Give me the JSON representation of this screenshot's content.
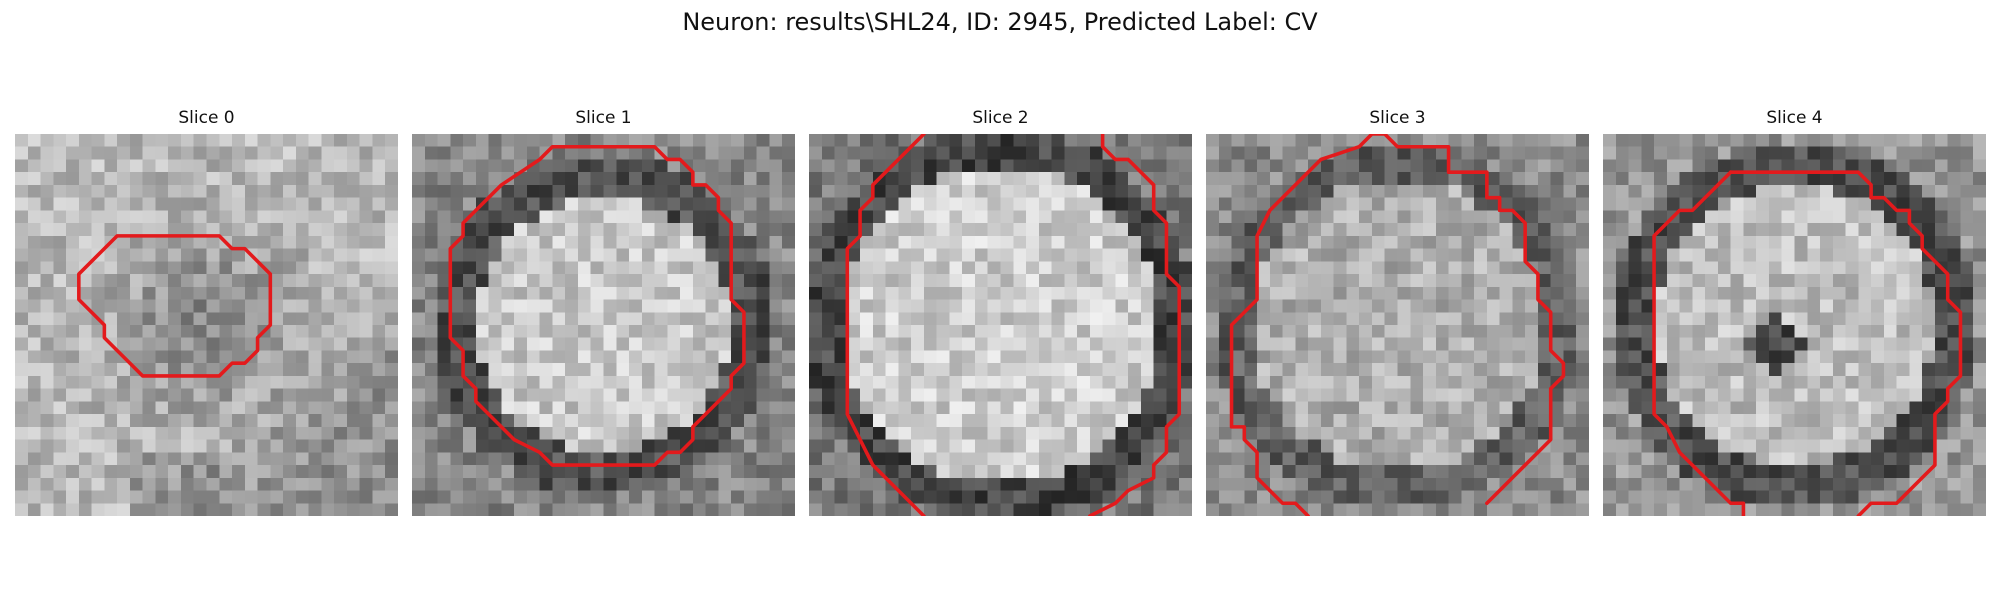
{
  "figure": {
    "title": "Neuron: results\\SHL24, ID: 2945, Predicted Label: CV",
    "contour_color": "#e31a1c",
    "colormap": "gray",
    "panels": [
      {
        "title": "Slice 0",
        "texture": "dark blob in center",
        "contour": [
          [
            11,
            8
          ],
          [
            16,
            8
          ],
          [
            17,
            9
          ],
          [
            18,
            9
          ],
          [
            20,
            11
          ],
          [
            20,
            15
          ],
          [
            19,
            16
          ],
          [
            19,
            17
          ],
          [
            18,
            18
          ],
          [
            17,
            18
          ],
          [
            16,
            19
          ],
          [
            10,
            19
          ],
          [
            8,
            17
          ],
          [
            7,
            16
          ],
          [
            7,
            15
          ],
          [
            5,
            13
          ],
          [
            5,
            11
          ],
          [
            7,
            9
          ],
          [
            8,
            8
          ]
        ]
      },
      {
        "title": "Slice 1",
        "texture": "bright disk with dark rim",
        "contour": [
          [
            12,
            1
          ],
          [
            19,
            1
          ],
          [
            20,
            2
          ],
          [
            21,
            2
          ],
          [
            22,
            3
          ],
          [
            22,
            4
          ],
          [
            23,
            4
          ],
          [
            24,
            5
          ],
          [
            24,
            6
          ],
          [
            25,
            7
          ],
          [
            25,
            13
          ],
          [
            26,
            14
          ],
          [
            26,
            18
          ],
          [
            25,
            19
          ],
          [
            25,
            20
          ],
          [
            22,
            23
          ],
          [
            22,
            24
          ],
          [
            21,
            25
          ],
          [
            20,
            25
          ],
          [
            19,
            26
          ],
          [
            11,
            26
          ],
          [
            10,
            25
          ],
          [
            8,
            24
          ],
          [
            7,
            23
          ],
          [
            6,
            22
          ],
          [
            5,
            21
          ],
          [
            5,
            20
          ],
          [
            4,
            19
          ],
          [
            4,
            17
          ],
          [
            3,
            16
          ],
          [
            3,
            9
          ],
          [
            4,
            8
          ],
          [
            4,
            7
          ],
          [
            5,
            6
          ],
          [
            7,
            4
          ],
          [
            10,
            2
          ],
          [
            11,
            1
          ]
        ]
      },
      {
        "title": "Slice 2",
        "texture": "large bright disk",
        "contour": [
          [
            9,
            0
          ],
          [
            5,
            4
          ],
          [
            5,
            5
          ],
          [
            4,
            6
          ],
          [
            4,
            8
          ],
          [
            3,
            9
          ],
          [
            3,
            22
          ],
          [
            4,
            24
          ],
          [
            5,
            26
          ],
          [
            7,
            28
          ],
          [
            8,
            29
          ],
          [
            9,
            30
          ]
        ]
      },
      {
        "title": "Slice 3",
        "texture": "bright disk with dark rim",
        "contour": [
          [
            5,
            28
          ],
          [
            4,
            27
          ],
          [
            4,
            25
          ],
          [
            3,
            24
          ],
          [
            3,
            23
          ],
          [
            2,
            23
          ],
          [
            2,
            15
          ],
          [
            3,
            14
          ],
          [
            4,
            13
          ],
          [
            4,
            8
          ],
          [
            5,
            6
          ],
          [
            7,
            4
          ],
          [
            9,
            2
          ],
          [
            12,
            1
          ],
          [
            13,
            0
          ],
          [
            14,
            0
          ],
          [
            15,
            1
          ],
          [
            19,
            1
          ],
          [
            19,
            3
          ],
          [
            22,
            3
          ],
          [
            22,
            5
          ],
          [
            23,
            5
          ],
          [
            23,
            6
          ],
          [
            24,
            6
          ],
          [
            25,
            7
          ],
          [
            25,
            10
          ],
          [
            26,
            11
          ],
          [
            26,
            13
          ],
          [
            27,
            14
          ],
          [
            27,
            17
          ],
          [
            28,
            18
          ],
          [
            28,
            19
          ],
          [
            27,
            20
          ],
          [
            27,
            24
          ],
          [
            26,
            25
          ],
          [
            25,
            26
          ],
          [
            24,
            27
          ],
          [
            22,
            29
          ]
        ]
      },
      {
        "title": "Slice 4",
        "texture": "bright disk with dark center and rim",
        "contour": [
          [
            10,
            3
          ],
          [
            20,
            3
          ],
          [
            21,
            4
          ],
          [
            21,
            5
          ],
          [
            22,
            5
          ],
          [
            23,
            6
          ],
          [
            24,
            6
          ],
          [
            24,
            7
          ],
          [
            25,
            8
          ],
          [
            25,
            9
          ],
          [
            26,
            10
          ],
          [
            27,
            11
          ],
          [
            27,
            13
          ],
          [
            28,
            14
          ],
          [
            28,
            19
          ],
          [
            27,
            20
          ],
          [
            27,
            21
          ],
          [
            26,
            22
          ],
          [
            26,
            26
          ],
          [
            25,
            27
          ],
          [
            24,
            28
          ],
          [
            23,
            29
          ],
          [
            21,
            29
          ],
          [
            20,
            30
          ]
        ]
      }
    ]
  }
}
